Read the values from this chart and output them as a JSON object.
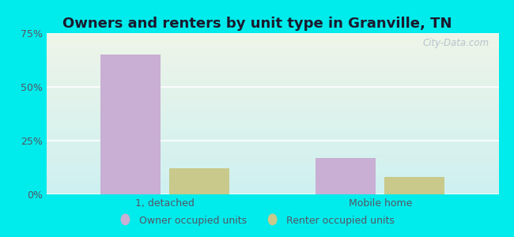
{
  "title": "Owners and renters by unit type in Granville, TN",
  "categories": [
    "1, detached",
    "Mobile home"
  ],
  "owner_values": [
    65.0,
    17.0
  ],
  "renter_values": [
    12.0,
    8.0
  ],
  "owner_color": "#c9afd4",
  "renter_color": "#c8c98a",
  "ylim": [
    0,
    75
  ],
  "yticks": [
    0,
    25,
    50,
    75
  ],
  "yticklabels": [
    "0%",
    "25%",
    "50%",
    "75%"
  ],
  "background_outer": "#00ebeb",
  "background_plot_top": "#eef4e8",
  "background_plot_bottom": "#cdf0f0",
  "grid_color": "#ffffff",
  "bar_width": 0.28,
  "legend_owner": "Owner occupied units",
  "legend_renter": "Renter occupied units",
  "watermark": "City-Data.com",
  "title_fontsize": 13,
  "tick_fontsize": 9,
  "legend_fontsize": 9,
  "title_color": "#1a1a2e",
  "tick_color": "#555566"
}
